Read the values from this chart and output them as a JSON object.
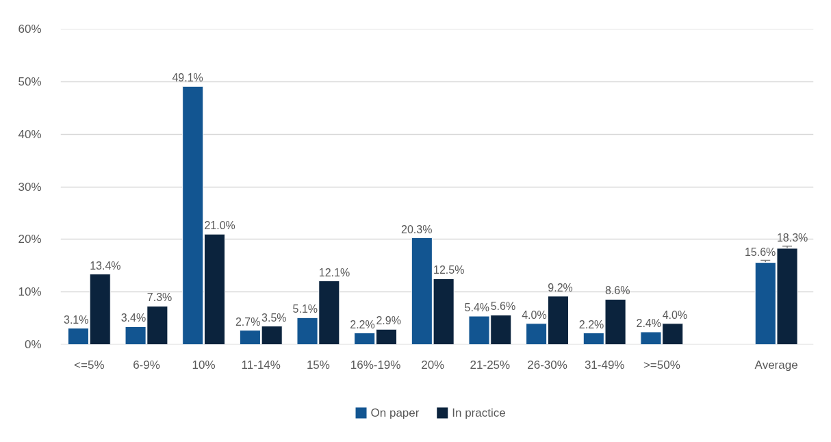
{
  "chart_data": {
    "type": "bar",
    "categories": [
      "<=5%",
      "6-9%",
      "10%",
      "11-14%",
      "15%",
      "16%-19%",
      "20%",
      "21-25%",
      "26-30%",
      "31-49%",
      ">=50%",
      null,
      "Average"
    ],
    "series": [
      {
        "name": "On paper",
        "color": "#125591",
        "values": [
          3.1,
          3.4,
          49.1,
          2.7,
          5.1,
          2.2,
          20.3,
          5.4,
          4.0,
          2.2,
          2.4,
          null,
          15.6
        ],
        "value_labels": [
          "3.1%",
          "3.4%",
          "49.1%",
          "2.7%",
          "5.1%",
          "2.2%",
          "20.3%",
          "5.4%",
          "4.0%",
          "2.2%",
          "2.4%",
          null,
          "15.6%"
        ],
        "errors": [
          null,
          null,
          null,
          null,
          null,
          null,
          null,
          null,
          null,
          null,
          null,
          null,
          0.4
        ]
      },
      {
        "name": "In practice",
        "color": "#0b233d",
        "values": [
          13.4,
          7.3,
          21.0,
          3.5,
          12.1,
          2.9,
          12.5,
          5.6,
          9.2,
          8.6,
          4.0,
          null,
          18.3
        ],
        "value_labels": [
          "13.4%",
          "7.3%",
          "21.0%",
          "3.5%",
          "12.1%",
          "2.9%",
          "12.5%",
          "5.6%",
          "9.2%",
          "8.6%",
          "4.0%",
          null,
          "18.3%"
        ],
        "errors": [
          null,
          null,
          null,
          null,
          null,
          null,
          null,
          null,
          null,
          null,
          null,
          null,
          0.4
        ]
      }
    ],
    "ylim": [
      0,
      60
    ],
    "yticks": [
      {
        "value": 0,
        "label": "0%"
      },
      {
        "value": 10,
        "label": "10%"
      },
      {
        "value": 20,
        "label": "20%"
      },
      {
        "value": 30,
        "label": "30%"
      },
      {
        "value": 40,
        "label": "40%"
      },
      {
        "value": 50,
        "label": "50%"
      },
      {
        "value": 60,
        "label": "60%"
      }
    ],
    "grid": "y",
    "legend": "bottom"
  }
}
